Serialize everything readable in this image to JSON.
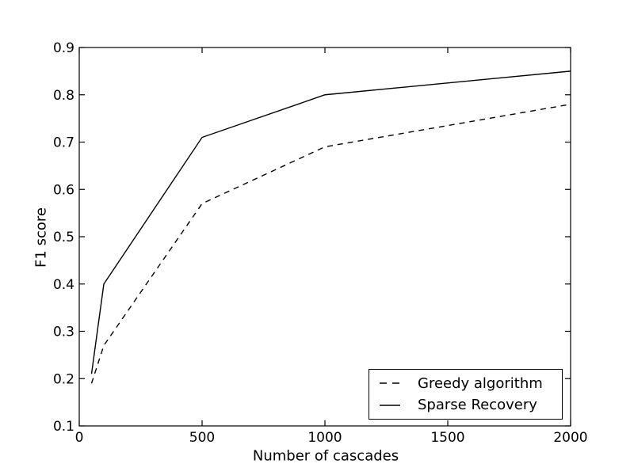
{
  "figure": {
    "background": "#ffffff",
    "axis_color": "#000000"
  },
  "chart_data": {
    "type": "line",
    "title": "",
    "xlabel": "Number of cascades",
    "ylabel": "F1 score",
    "xlim": [
      0,
      2000
    ],
    "ylim": [
      0.1,
      0.9
    ],
    "xticks": [
      0,
      500,
      1000,
      1500,
      2000
    ],
    "yticks": [
      0.1,
      0.2,
      0.3,
      0.4,
      0.5,
      0.6,
      0.7,
      0.8,
      0.9
    ],
    "grid": false,
    "legend_position": "lower right",
    "x": [
      50,
      100,
      500,
      1000,
      2000
    ],
    "series": [
      {
        "name": "Greedy algorithm",
        "line_style": "dashed",
        "color": "#000000",
        "values": [
          0.19,
          0.27,
          0.57,
          0.69,
          0.78
        ]
      },
      {
        "name": "Sparse Recovery",
        "line_style": "solid",
        "color": "#000000",
        "values": [
          0.21,
          0.4,
          0.71,
          0.8,
          0.85
        ]
      }
    ]
  }
}
